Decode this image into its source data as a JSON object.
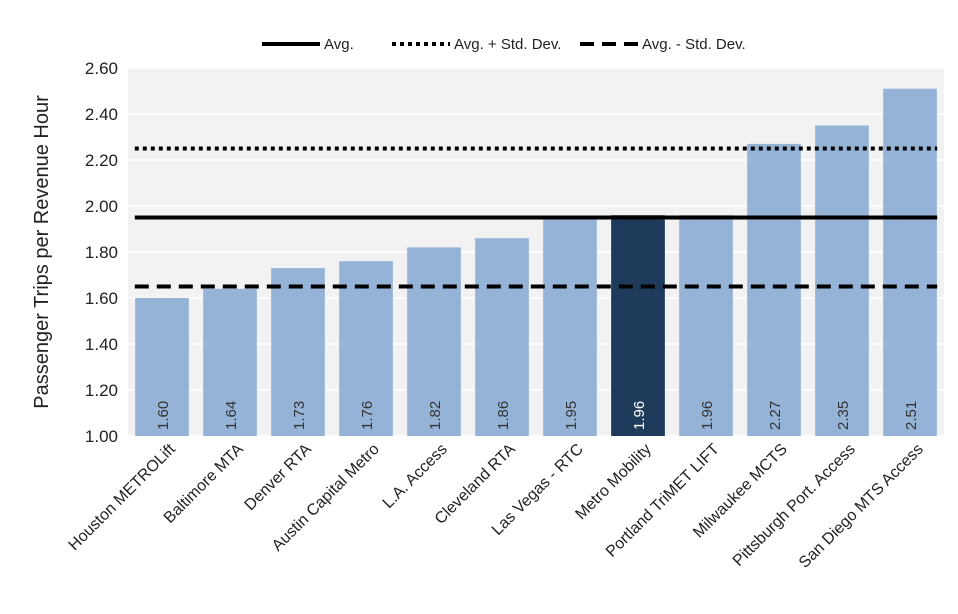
{
  "chart_data": {
    "type": "bar",
    "title": "",
    "xlabel": "",
    "ylabel": "Passenger Trips per Revenue Hour",
    "ylim": [
      1.0,
      2.6
    ],
    "yticks": [
      "1.00",
      "1.20",
      "1.40",
      "1.60",
      "1.80",
      "2.00",
      "2.20",
      "2.40",
      "2.60"
    ],
    "grid": true,
    "legend_position": "top",
    "categories": [
      "Houston METROLift",
      "Baltimore MTA",
      "Denver RTA",
      "Austin Capital Metro",
      "L.A. Access",
      "Cleveland RTA",
      "Las Vegas - RTC",
      "Metro Mobility",
      "Portland TriMET LIFT",
      "Milwaukee MCTS",
      "Pittsburgh Port. Access",
      "San Diego MTS Access"
    ],
    "values": [
      1.6,
      1.64,
      1.73,
      1.76,
      1.82,
      1.86,
      1.95,
      1.96,
      1.96,
      2.27,
      2.35,
      2.51
    ],
    "value_labels": [
      "1.60",
      "1.64",
      "1.73",
      "1.76",
      "1.82",
      "1.86",
      "1.95",
      "1.96",
      "1.96",
      "2.27",
      "2.35",
      "2.51"
    ],
    "highlight_index": 7,
    "reference_lines": [
      {
        "name": "Avg.",
        "value": 1.95,
        "style": "solid"
      },
      {
        "name": "Avg. + Std. Dev.",
        "value": 2.25,
        "style": "dotted"
      },
      {
        "name": "Avg. - Std. Dev.",
        "value": 1.65,
        "style": "dashed"
      }
    ],
    "colors": {
      "bar": "#95b3d7",
      "highlight": "#1f3b5c",
      "line": "#000000",
      "grid": "#ffffff",
      "plot_bg": "#f2f2f2",
      "label": "#333333",
      "highlight_label": "#ffffff"
    }
  }
}
